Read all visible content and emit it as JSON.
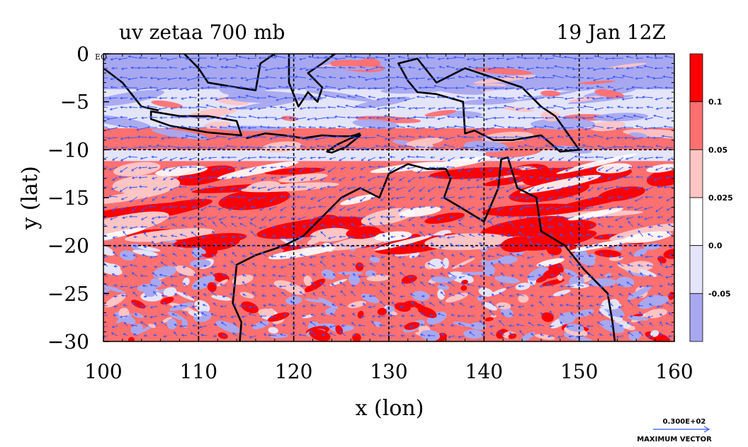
{
  "chart_data": {
    "type": "heatmap",
    "title": "uv zetaa 700 mb",
    "subtitle": "19 Jan 12Z",
    "xlabel": "x (lon)",
    "ylabel": "y (lat)",
    "xlim": [
      100,
      160
    ],
    "ylim": [
      -30,
      0
    ],
    "xticks": [
      "100",
      "110",
      "120",
      "130",
      "140",
      "150",
      "160"
    ],
    "xtick_values": [
      100,
      110,
      120,
      130,
      140,
      150,
      160
    ],
    "yticks": [
      "0",
      "−5",
      "−10",
      "−15",
      "−20",
      "−25",
      "−30"
    ],
    "ytick_values": [
      0,
      -5,
      -10,
      -15,
      -20,
      -25,
      -30
    ],
    "eq_label": "EQ",
    "grid": true,
    "colorbar": {
      "position": "right",
      "levels": [
        "0.1",
        "0.05",
        "0.025",
        "0.0",
        "-0.05"
      ],
      "colors": [
        "#ff0000",
        "#ff7070",
        "#ffc4c4",
        "#ffffff",
        "#e4e4fb",
        "#a8a8f0"
      ]
    },
    "vector_key": {
      "value": "0.300E+02",
      "label": "MAXIMUM VECTOR",
      "color": "#3355ff"
    },
    "regions": [
      {
        "band": "equator to -4",
        "level": "negative",
        "color": "#a8a8f0"
      },
      {
        "band": "-4 to -10",
        "level": "mixed",
        "color": "#e4e4fb"
      },
      {
        "band": "-10 to -22",
        "level": "strong positive",
        "color": "#ff7070"
      },
      {
        "band": "-22 to -30",
        "level": "mixed positive/negative",
        "color": "#ff7070"
      }
    ]
  },
  "colors": {
    "accent_red": "#ff0000",
    "mid_red": "#ff7070",
    "light_red": "#ffc4c4",
    "light_blue": "#e4e4fb",
    "mid_blue": "#a8a8f0",
    "vector": "#3355ff",
    "coast": "#000000"
  }
}
